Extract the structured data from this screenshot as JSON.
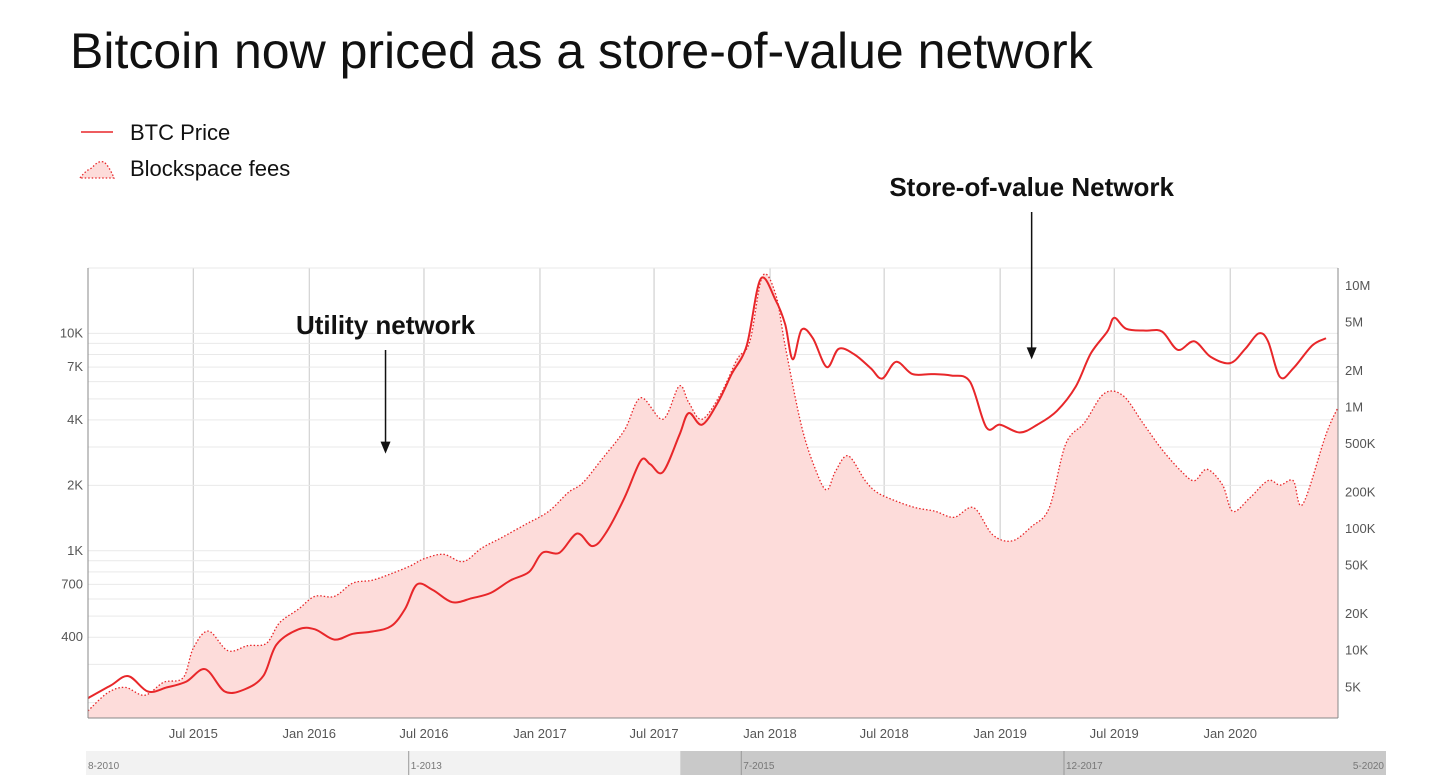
{
  "chart_data": {
    "type": "line",
    "title": "Bitcoin now priced as a store-of-value network",
    "legend_placement": "top-left",
    "grid": true,
    "x_axis": {
      "type": "date",
      "range": [
        "2015-01-15",
        "2020-06-20"
      ],
      "ticks": [
        {
          "date": "2015-07-01",
          "label": "Jul 2015"
        },
        {
          "date": "2016-01-01",
          "label": "Jan 2016"
        },
        {
          "date": "2016-07-01",
          "label": "Jul 2016"
        },
        {
          "date": "2017-01-01",
          "label": "Jan 2017"
        },
        {
          "date": "2017-07-01",
          "label": "Jul 2017"
        },
        {
          "date": "2018-01-01",
          "label": "Jan 2018"
        },
        {
          "date": "2018-07-01",
          "label": "Jul 2018"
        },
        {
          "date": "2019-01-01",
          "label": "Jan 2019"
        },
        {
          "date": "2019-07-01",
          "label": "Jul 2019"
        },
        {
          "date": "2020-01-01",
          "label": "Jan 2020"
        }
      ]
    },
    "y_left": {
      "scale": "log",
      "range": [
        170,
        20000
      ],
      "ticks": [
        {
          "value": 400,
          "label": "400"
        },
        {
          "value": 700,
          "label": "700"
        },
        {
          "value": 1000,
          "label": "1K"
        },
        {
          "value": 2000,
          "label": "2K"
        },
        {
          "value": 4000,
          "label": "4K"
        },
        {
          "value": 7000,
          "label": "7K"
        },
        {
          "value": 10000,
          "label": "10K"
        }
      ]
    },
    "y_right": {
      "scale": "log",
      "range": [
        2800,
        14000000
      ],
      "ticks": [
        {
          "value": 5000,
          "label": "5K"
        },
        {
          "value": 10000,
          "label": "10K"
        },
        {
          "value": 20000,
          "label": "20K"
        },
        {
          "value": 50000,
          "label": "50K"
        },
        {
          "value": 100000,
          "label": "100K"
        },
        {
          "value": 200000,
          "label": "200K"
        },
        {
          "value": 500000,
          "label": "500K"
        },
        {
          "value": 1000000,
          "label": "1M"
        },
        {
          "value": 2000000,
          "label": "2M"
        },
        {
          "value": 5000000,
          "label": "5M"
        },
        {
          "value": 10000000,
          "label": "10M"
        }
      ]
    },
    "series": [
      {
        "name": "BTC Price",
        "axis": "left",
        "style": "line",
        "color": "#e8272a",
        "points": [
          [
            "2015-01-15",
            210
          ],
          [
            "2015-02-20",
            240
          ],
          [
            "2015-03-20",
            265
          ],
          [
            "2015-04-20",
            225
          ],
          [
            "2015-05-20",
            235
          ],
          [
            "2015-06-20",
            250
          ],
          [
            "2015-07-20",
            285
          ],
          [
            "2015-08-20",
            225
          ],
          [
            "2015-09-20",
            230
          ],
          [
            "2015-10-20",
            265
          ],
          [
            "2015-11-10",
            370
          ],
          [
            "2015-12-15",
            435
          ],
          [
            "2016-01-10",
            435
          ],
          [
            "2016-02-10",
            390
          ],
          [
            "2016-03-10",
            415
          ],
          [
            "2016-04-10",
            425
          ],
          [
            "2016-05-10",
            450
          ],
          [
            "2016-06-01",
            540
          ],
          [
            "2016-06-20",
            700
          ],
          [
            "2016-07-15",
            660
          ],
          [
            "2016-08-15",
            580
          ],
          [
            "2016-09-15",
            605
          ],
          [
            "2016-10-15",
            640
          ],
          [
            "2016-11-15",
            730
          ],
          [
            "2016-12-15",
            800
          ],
          [
            "2017-01-05",
            980
          ],
          [
            "2017-02-01",
            980
          ],
          [
            "2017-03-01",
            1200
          ],
          [
            "2017-03-25",
            1050
          ],
          [
            "2017-04-15",
            1200
          ],
          [
            "2017-05-15",
            1750
          ],
          [
            "2017-06-10",
            2600
          ],
          [
            "2017-06-25",
            2500
          ],
          [
            "2017-07-15",
            2300
          ],
          [
            "2017-08-10",
            3400
          ],
          [
            "2017-08-25",
            4300
          ],
          [
            "2017-09-15",
            3800
          ],
          [
            "2017-10-10",
            4800
          ],
          [
            "2017-11-01",
            6500
          ],
          [
            "2017-11-25",
            8800
          ],
          [
            "2017-12-17",
            17800
          ],
          [
            "2018-01-10",
            14200
          ],
          [
            "2018-01-25",
            11000
          ],
          [
            "2018-02-06",
            7600
          ],
          [
            "2018-02-20",
            10400
          ],
          [
            "2018-03-10",
            9500
          ],
          [
            "2018-04-01",
            7000
          ],
          [
            "2018-04-20",
            8500
          ],
          [
            "2018-05-15",
            8000
          ],
          [
            "2018-06-10",
            6900
          ],
          [
            "2018-06-28",
            6200
          ],
          [
            "2018-07-20",
            7400
          ],
          [
            "2018-08-15",
            6500
          ],
          [
            "2018-09-15",
            6500
          ],
          [
            "2018-10-15",
            6400
          ],
          [
            "2018-11-14",
            6000
          ],
          [
            "2018-12-10",
            3700
          ],
          [
            "2019-01-01",
            3800
          ],
          [
            "2019-02-01",
            3500
          ],
          [
            "2019-03-01",
            3800
          ],
          [
            "2019-04-01",
            4400
          ],
          [
            "2019-05-01",
            5700
          ],
          [
            "2019-05-25",
            8100
          ],
          [
            "2019-06-20",
            10200
          ],
          [
            "2019-07-01",
            11800
          ],
          [
            "2019-07-20",
            10500
          ],
          [
            "2019-08-20",
            10300
          ],
          [
            "2019-09-15",
            10200
          ],
          [
            "2019-10-10",
            8400
          ],
          [
            "2019-11-05",
            9200
          ],
          [
            "2019-12-01",
            7800
          ],
          [
            "2020-01-01",
            7300
          ],
          [
            "2020-01-25",
            8500
          ],
          [
            "2020-02-15",
            10000
          ],
          [
            "2020-03-01",
            9200
          ],
          [
            "2020-03-20",
            6300
          ],
          [
            "2020-04-10",
            6900
          ],
          [
            "2020-05-10",
            8800
          ],
          [
            "2020-06-01",
            9500
          ]
        ]
      },
      {
        "name": "Blockspace fees",
        "axis": "right",
        "style": "area-dotted",
        "color": "#e8272a",
        "fill": "#fddcda",
        "points": [
          [
            "2015-01-15",
            3200
          ],
          [
            "2015-02-15",
            4500
          ],
          [
            "2015-03-15",
            5000
          ],
          [
            "2015-04-15",
            4300
          ],
          [
            "2015-05-15",
            5500
          ],
          [
            "2015-06-15",
            6000
          ],
          [
            "2015-07-01",
            10500
          ],
          [
            "2015-07-25",
            14500
          ],
          [
            "2015-08-25",
            10000
          ],
          [
            "2015-09-25",
            11000
          ],
          [
            "2015-10-25",
            11500
          ],
          [
            "2015-11-15",
            17000
          ],
          [
            "2015-12-15",
            22000
          ],
          [
            "2016-01-10",
            28000
          ],
          [
            "2016-02-10",
            28000
          ],
          [
            "2016-03-10",
            36000
          ],
          [
            "2016-04-10",
            38000
          ],
          [
            "2016-05-10",
            43000
          ],
          [
            "2016-06-10",
            50000
          ],
          [
            "2016-07-01",
            57000
          ],
          [
            "2016-08-01",
            62000
          ],
          [
            "2016-09-01",
            54000
          ],
          [
            "2016-10-01",
            70000
          ],
          [
            "2016-11-01",
            85000
          ],
          [
            "2016-12-10",
            110000
          ],
          [
            "2017-01-15",
            140000
          ],
          [
            "2017-02-15",
            200000
          ],
          [
            "2017-03-10",
            240000
          ],
          [
            "2017-04-10",
            380000
          ],
          [
            "2017-05-15",
            650000
          ],
          [
            "2017-06-10",
            1200000
          ],
          [
            "2017-07-15",
            800000
          ],
          [
            "2017-08-10",
            1500000
          ],
          [
            "2017-08-25",
            1100000
          ],
          [
            "2017-09-15",
            800000
          ],
          [
            "2017-10-15",
            1300000
          ],
          [
            "2017-11-10",
            2500000
          ],
          [
            "2017-11-30",
            3500000
          ],
          [
            "2017-12-20",
            12000000
          ],
          [
            "2018-01-10",
            8500000
          ],
          [
            "2018-01-25",
            3200000
          ],
          [
            "2018-02-20",
            700000
          ],
          [
            "2018-03-15",
            300000
          ],
          [
            "2018-04-01",
            210000
          ],
          [
            "2018-04-15",
            300000
          ],
          [
            "2018-05-05",
            400000
          ],
          [
            "2018-06-01",
            250000
          ],
          [
            "2018-06-20",
            200000
          ],
          [
            "2018-07-20",
            170000
          ],
          [
            "2018-08-20",
            150000
          ],
          [
            "2018-09-20",
            140000
          ],
          [
            "2018-10-20",
            125000
          ],
          [
            "2018-11-20",
            150000
          ],
          [
            "2018-12-20",
            90000
          ],
          [
            "2019-01-20",
            80000
          ],
          [
            "2019-02-20",
            105000
          ],
          [
            "2019-03-20",
            150000
          ],
          [
            "2019-04-15",
            500000
          ],
          [
            "2019-05-15",
            750000
          ],
          [
            "2019-06-15",
            1300000
          ],
          [
            "2019-07-15",
            1250000
          ],
          [
            "2019-08-15",
            750000
          ],
          [
            "2019-09-15",
            450000
          ],
          [
            "2019-10-15",
            300000
          ],
          [
            "2019-11-05",
            250000
          ],
          [
            "2019-11-25",
            310000
          ],
          [
            "2019-12-20",
            230000
          ],
          [
            "2020-01-05",
            140000
          ],
          [
            "2020-02-01",
            180000
          ],
          [
            "2020-03-01",
            250000
          ],
          [
            "2020-03-20",
            230000
          ],
          [
            "2020-04-10",
            250000
          ],
          [
            "2020-04-25",
            160000
          ],
          [
            "2020-06-01",
            600000
          ],
          [
            "2020-06-20",
            1000000
          ]
        ]
      }
    ],
    "annotations": [
      {
        "text": "Utility network",
        "date": "2016-05-01",
        "arrow_to_value": 2800,
        "axis": "left"
      },
      {
        "text": "Store-of-value Network",
        "date": "2019-02-20",
        "arrow_to_value": 7600,
        "axis": "left"
      }
    ],
    "navigator": {
      "range": [
        "2010-08-01",
        "2020-05-01"
      ],
      "selected": [
        "2015-01-15",
        "2020-06-20"
      ],
      "labels": [
        {
          "date": "2010-08-01",
          "label": "8-2010"
        },
        {
          "date": "2013-01-01",
          "label": "1-2013"
        },
        {
          "date": "2015-07-01",
          "label": "7-2015"
        },
        {
          "date": "2017-12-01",
          "label": "12-2017"
        },
        {
          "date": "2020-05-01",
          "label": "5-2020"
        }
      ]
    }
  }
}
